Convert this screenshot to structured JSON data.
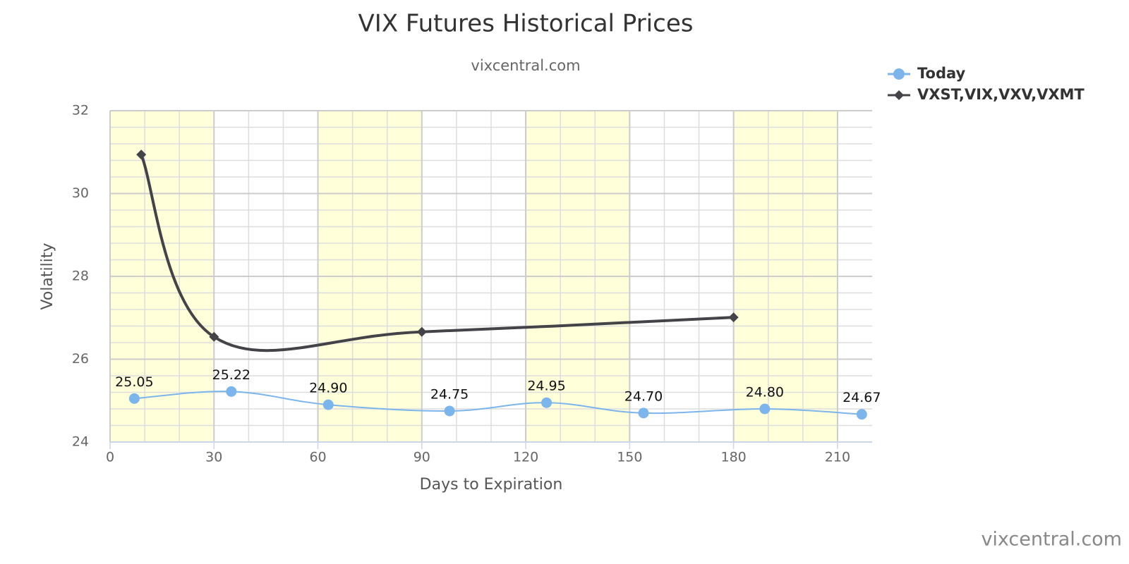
{
  "chart_data": {
    "type": "line",
    "title": "VIX Futures Historical Prices",
    "subtitle": "vixcentral.com",
    "credits": "vixcentral.com",
    "xlabel": "Days to Expiration",
    "ylabel": "Volatility",
    "xlim": [
      0,
      220
    ],
    "xticks": [
      0,
      30,
      60,
      90,
      120,
      150,
      180,
      210
    ],
    "ylim": [
      24,
      32
    ],
    "yticks": [
      24,
      26,
      28,
      30,
      32
    ],
    "grid": true,
    "legend": "top-right",
    "series": [
      {
        "name": "Today",
        "color": "#7cb5ec",
        "marker": "circle",
        "x": [
          7,
          35,
          63,
          98,
          126,
          154,
          189,
          217
        ],
        "values": [
          25.05,
          25.22,
          24.9,
          24.75,
          24.95,
          24.7,
          24.8,
          24.67
        ],
        "value_labels": [
          "25.05",
          "25.22",
          "24.90",
          "24.75",
          "24.95",
          "24.70",
          "24.80",
          "24.67"
        ]
      },
      {
        "name": "VXST,VIX,VXV,VXMT",
        "color": "#434348",
        "marker": "diamond",
        "x": [
          9,
          30,
          90,
          180
        ],
        "values": [
          30.94,
          26.54,
          26.66,
          27.01
        ]
      }
    ]
  }
}
